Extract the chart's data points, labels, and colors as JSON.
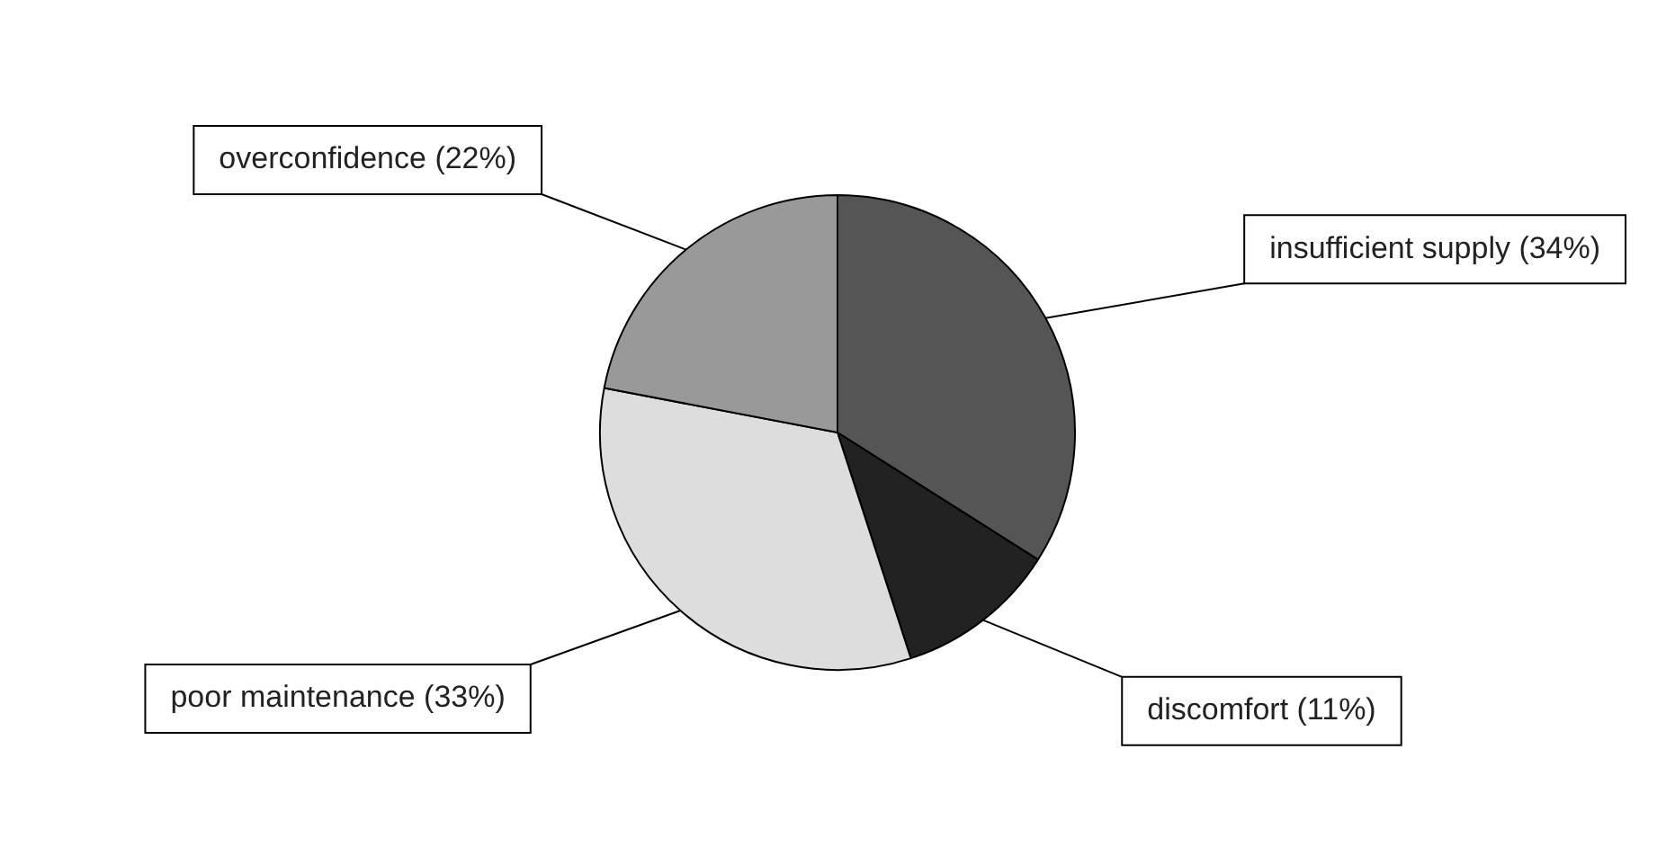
{
  "chart_data": {
    "type": "pie",
    "categories": [
      "insufficient supply",
      "discomfort",
      "poor maintenance",
      "overconfidence"
    ],
    "values": [
      34,
      11,
      33,
      22
    ],
    "value_labels": [
      "(34%)",
      "(11%)",
      "(33%)",
      "(22%)"
    ],
    "colors": [
      "#555555",
      "#222222",
      "#dddddd",
      "#999999"
    ],
    "legend": false
  }
}
